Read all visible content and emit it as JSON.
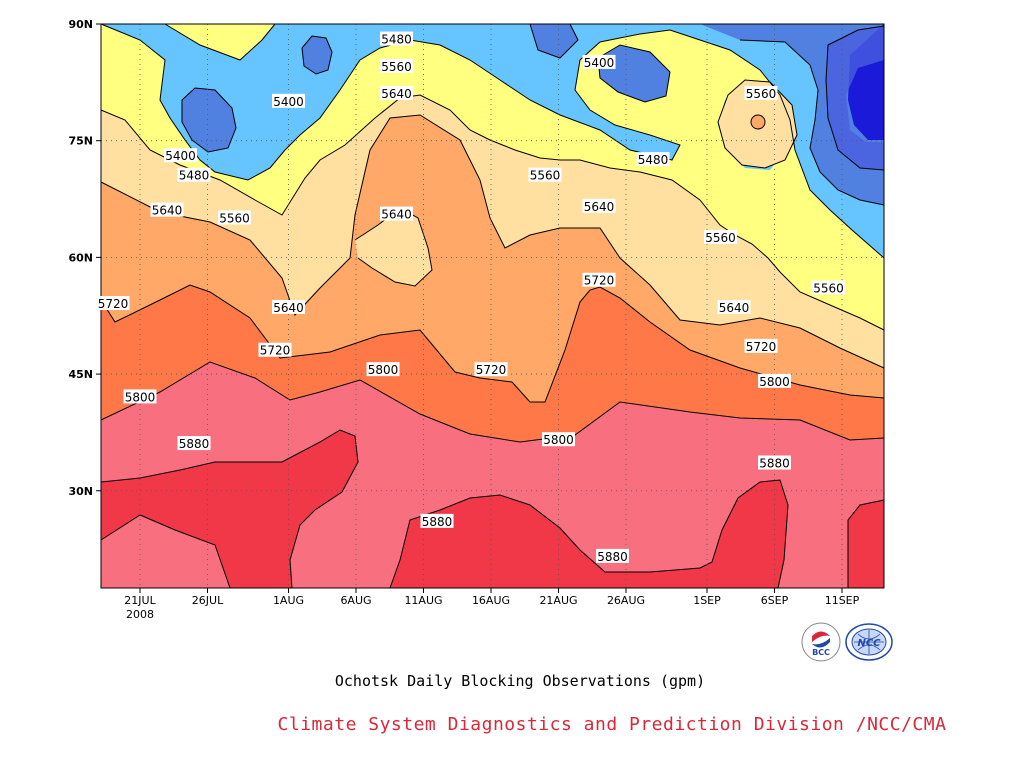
{
  "chart_data": {
    "type": "heatmap",
    "title": "Ochotsk Daily Blocking Observations (gpm)",
    "credit": "Climate System Diagnostics and Prediction Division /NCC/CMA",
    "x_ticks": [
      {
        "label": "21JUL",
        "sub": "2008"
      },
      {
        "label": "26JUL",
        "sub": ""
      },
      {
        "label": "1AUG",
        "sub": ""
      },
      {
        "label": "6AUG",
        "sub": ""
      },
      {
        "label": "11AUG",
        "sub": ""
      },
      {
        "label": "16AUG",
        "sub": ""
      },
      {
        "label": "21AUG",
        "sub": ""
      },
      {
        "label": "26AUG",
        "sub": ""
      },
      {
        "label": "1SEP",
        "sub": ""
      },
      {
        "label": "6SEP",
        "sub": ""
      },
      {
        "label": "11SEP",
        "sub": ""
      }
    ],
    "y_ticks": [
      "90N",
      "75N",
      "60N",
      "45N",
      "30N"
    ],
    "contour_levels": [
      5400,
      5480,
      5560,
      5640,
      5720,
      5800,
      5880
    ],
    "contour_labels": [
      {
        "value": "5480",
        "date": "9AUG",
        "lat": 88
      },
      {
        "value": "5400",
        "date": "1AUG",
        "lat": 80
      },
      {
        "value": "5400",
        "date": "24AUG",
        "lat": 85
      },
      {
        "value": "5560",
        "date": "9AUG",
        "lat": 84.5
      },
      {
        "value": "5560",
        "date": "5SEP",
        "lat": 81
      },
      {
        "value": "5640",
        "date": "9AUG",
        "lat": 81
      },
      {
        "value": "5400",
        "date": "24JUL",
        "lat": 73
      },
      {
        "value": "5480",
        "date": "25JUL",
        "lat": 70.5
      },
      {
        "value": "5480",
        "date": "28AUG",
        "lat": 72.5
      },
      {
        "value": "5560",
        "date": "20AUG",
        "lat": 70.5
      },
      {
        "value": "5640",
        "date": "24AUG",
        "lat": 66.5
      },
      {
        "value": "5640",
        "date": "23JUL",
        "lat": 66
      },
      {
        "value": "5560",
        "date": "28JUL",
        "lat": 65
      },
      {
        "value": "5640",
        "date": "9AUG",
        "lat": 65.5
      },
      {
        "value": "5560",
        "date": "2SEP",
        "lat": 62.5
      },
      {
        "value": "5720",
        "date": "24AUG",
        "lat": 57
      },
      {
        "value": "5560",
        "date": "10SEP",
        "lat": 56
      },
      {
        "value": "5720",
        "date": "19JUL",
        "lat": 54
      },
      {
        "value": "5640",
        "date": "1AUG",
        "lat": 53.5
      },
      {
        "value": "5640",
        "date": "3SEP",
        "lat": 53.5
      },
      {
        "value": "5720",
        "date": "31JUL",
        "lat": 48
      },
      {
        "value": "5720",
        "date": "5SEP",
        "lat": 48.5
      },
      {
        "value": "5800",
        "date": "8AUG",
        "lat": 45.5
      },
      {
        "value": "5720",
        "date": "16AUG",
        "lat": 45.5
      },
      {
        "value": "5800",
        "date": "6SEP",
        "lat": 44
      },
      {
        "value": "5800",
        "date": "21JUL",
        "lat": 42
      },
      {
        "value": "5800",
        "date": "21AUG",
        "lat": 36.5
      },
      {
        "value": "5880",
        "date": "25JUL",
        "lat": 36
      },
      {
        "value": "5880",
        "date": "6SEP",
        "lat": 33.5
      },
      {
        "value": "5880",
        "date": "12AUG",
        "lat": 26
      },
      {
        "value": "5880",
        "date": "25AUG",
        "lat": 21.5
      }
    ],
    "colors": {
      "below_5400": "#1a1ad8",
      "5400_5480": "#5080e0",
      "5480_5560": "#66c4ff",
      "5560_5640": "#ffff80",
      "5640_5720": "#ffe0a0",
      "5720_5800": "#ffa868",
      "5800_5880": "#ff7848",
      "5880_5960": "#f87080",
      "above_5960": "#f03848"
    },
    "grid": "dotted"
  },
  "logos": {
    "left": "BCC",
    "right": "NCC"
  }
}
